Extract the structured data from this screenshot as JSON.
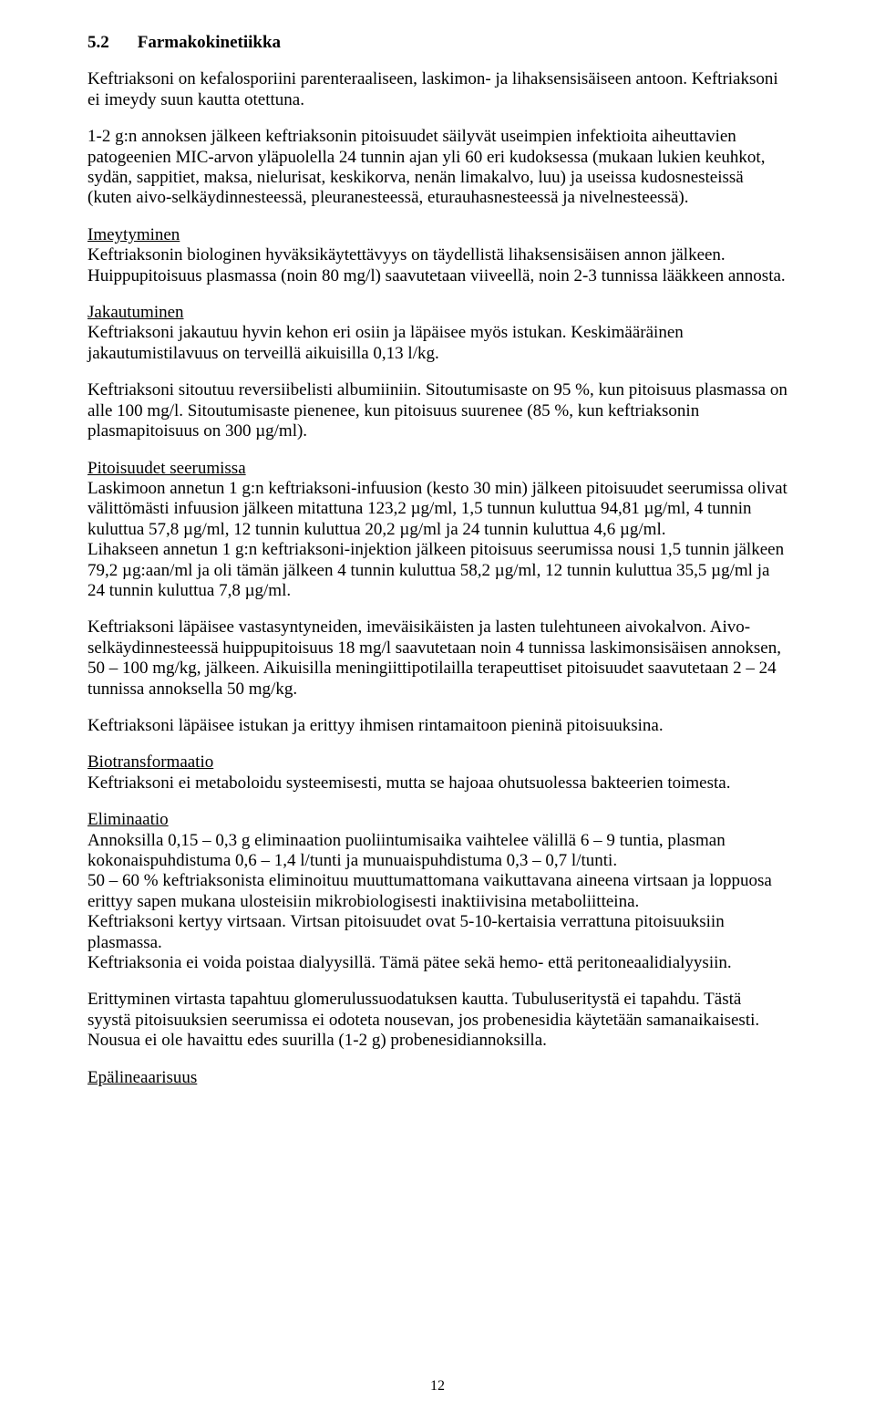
{
  "section": {
    "number": "5.2",
    "title": "Farmakokinetiikka"
  },
  "intro": {
    "p1": "Keftriaksoni on kefalosporiini parenteraaliseen, laskimon- ja lihaksensisäiseen antoon. Keftriaksoni ei imeydy suun kautta otettuna.",
    "p2": "1-2 g:n annoksen jälkeen keftriaksonin pitoisuudet säilyvät useimpien infektioita aiheuttavien patogeenien MIC-arvon yläpuolella 24 tunnin ajan yli 60 eri kudoksessa (mukaan lukien keuhkot, sydän, sappitiet, maksa, nielurisat, keskikorva, nenän limakalvo, luu) ja useissa kudosnesteissä (kuten aivo-selkäydinnesteessä, pleuranesteessä, eturauhasnesteessä ja nivelnesteessä)."
  },
  "absorption": {
    "heading": "Imeytyminen",
    "text": "Keftriaksonin biologinen hyväksikäytettävyys on täydellistä lihaksensisäisen annon jälkeen. Huippupitoisuus plasmassa (noin 80 mg/l) saavutetaan viiveellä, noin 2-3 tunnissa lääkkeen annosta."
  },
  "distribution": {
    "heading": "Jakautuminen",
    "p1": "Keftriaksoni jakautuu hyvin kehon eri osiin ja läpäisee myös istukan. Keskimääräinen jakautumistilavuus on terveillä aikuisilla 0,13 l/kg.",
    "p2": "Keftriaksoni sitoutuu reversiibelisti albumiiniin. Sitoutumisaste on 95 %, kun pitoisuus plasmassa on alle 100 mg/l. Sitoutumisaste pienenee, kun pitoisuus suurenee (85 %, kun keftriaksonin plasmapitoisuus on 300 µg/ml)."
  },
  "serum": {
    "heading": "Pitoisuudet seerumissa",
    "p1": "Laskimoon annetun 1 g:n keftriaksoni-infuusion (kesto 30 min) jälkeen pitoisuudet seerumissa olivat välittömästi infuusion jälkeen mitattuna 123,2 µg/ml, 1,5 tunnun kuluttua 94,81 µg/ml, 4 tunnin kuluttua 57,8 µg/ml, 12 tunnin kuluttua 20,2 µg/ml ja 24 tunnin kuluttua 4,6 µg/ml.",
    "p2": "Lihakseen annetun 1 g:n keftriaksoni-injektion jälkeen pitoisuus seerumissa nousi 1,5 tunnin jälkeen 79,2 µg:aan/ml ja oli tämän jälkeen 4 tunnin kuluttua 58,2 µg/ml, 12 tunnin kuluttua 35,5 µg/ml ja 24 tunnin kuluttua 7,8 µg/ml.",
    "p3": "Keftriaksoni läpäisee vastasyntyneiden, imeväisikäisten ja lasten tulehtuneen aivokalvon. Aivo-selkäydinnesteessä huippupitoisuus 18 mg/l saavutetaan noin 4 tunnissa laskimonsisäisen annoksen, 50 – 100 mg/kg, jälkeen. Aikuisilla meningiittipotilailla terapeuttiset pitoisuudet saavutetaan 2 – 24 tunnissa annoksella 50 mg/kg.",
    "p4": "Keftriaksoni läpäisee istukan ja erittyy ihmisen rintamaitoon pieninä pitoisuuksina."
  },
  "biotransformation": {
    "heading": "Biotransformaatio",
    "text": "Keftriaksoni ei metaboloidu systeemisesti, mutta se hajoaa ohutsuolessa bakteerien toimesta."
  },
  "elimination": {
    "heading": "Eliminaatio",
    "p1": "Annoksilla 0,15 – 0,3 g eliminaation puoliintumisaika vaihtelee välillä 6 – 9 tuntia, plasman kokonaispuhdistuma 0,6 – 1,4 l/tunti ja munuaispuhdistuma 0,3 – 0,7 l/tunti.",
    "p2": "50 – 60 % keftriaksonista eliminoituu muuttumattomana vaikuttavana aineena virtsaan ja loppuosa erittyy sapen mukana ulosteisiin mikrobiologisesti inaktiivisina metaboliitteina.",
    "p3": "Keftriaksoni kertyy virtsaan. Virtsan pitoisuudet ovat 5-10-kertaisia verrattuna pitoisuuksiin plasmassa.",
    "p4": "Keftriaksonia ei voida poistaa dialyysillä. Tämä pätee sekä hemo- että peritoneaalidialyysiin.",
    "p5": "Erittyminen virtasta tapahtuu glomerulussuodatuksen kautta. Tubuluseritystä ei tapahdu. Tästä syystä pitoisuuksien seerumissa ei odoteta nousevan, jos probenesidia käytetään samanaikaisesti. Nousua ei ole havaittu edes suurilla (1-2 g) probenesidiannoksilla."
  },
  "nonlinearity": {
    "heading": "Epälineaarisuus"
  },
  "pageNumber": "12"
}
